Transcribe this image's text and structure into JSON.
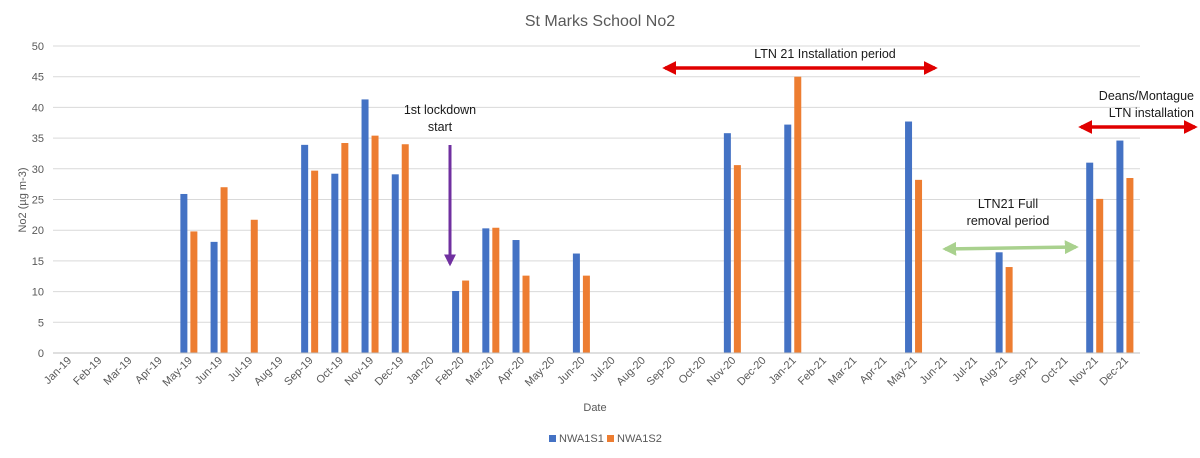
{
  "chart_data": {
    "type": "bar",
    "title": "St Marks School No2",
    "xlabel": "Date",
    "ylabel": "No2 (µg m-3)",
    "ylim": [
      0,
      50
    ],
    "yticks": [
      0,
      5,
      10,
      15,
      20,
      25,
      30,
      35,
      40,
      45,
      50
    ],
    "grid": true,
    "legend_position": "bottom",
    "categories": [
      "Jan-19",
      "Feb-19",
      "Mar-19",
      "Apr-19",
      "May-19",
      "Jun-19",
      "Jul-19",
      "Aug-19",
      "Sep-19",
      "Oct-19",
      "Nov-19",
      "Dec-19",
      "Jan-20",
      "Feb-20",
      "Mar-20",
      "Apr-20",
      "May-20",
      "Jun-20",
      "Jul-20",
      "Aug-20",
      "Sep-20",
      "Oct-20",
      "Nov-20",
      "Dec-20",
      "Jan-21",
      "Feb-21",
      "Mar-21",
      "Apr-21",
      "May-21",
      "Jun-21",
      "Jul-21",
      "Aug-21",
      "Sep-21",
      "Oct-21",
      "Nov-21",
      "Dec-21"
    ],
    "series": [
      {
        "name": "NWA1S1",
        "color": "#4472C4",
        "values": [
          null,
          null,
          null,
          null,
          25.9,
          18.1,
          null,
          null,
          33.9,
          29.2,
          41.3,
          29.1,
          null,
          10.1,
          20.3,
          18.4,
          null,
          16.2,
          null,
          null,
          null,
          null,
          35.8,
          null,
          37.2,
          null,
          null,
          null,
          37.7,
          null,
          null,
          16.4,
          null,
          null,
          31.0,
          34.6
        ]
      },
      {
        "name": "NWA1S2",
        "color": "#ED7D31",
        "values": [
          null,
          null,
          null,
          null,
          19.8,
          27.0,
          21.7,
          null,
          29.7,
          34.2,
          35.4,
          34.0,
          null,
          11.8,
          20.4,
          12.6,
          null,
          12.6,
          null,
          null,
          null,
          null,
          30.6,
          null,
          45.0,
          null,
          null,
          null,
          28.2,
          null,
          null,
          14.0,
          null,
          null,
          25.1,
          28.5
        ]
      }
    ],
    "annotations": [
      {
        "id": "lockdown",
        "lines": [
          "1st lockdown",
          "start"
        ],
        "arrow": "down",
        "color": "#7030A0",
        "at_category": "Feb-20"
      },
      {
        "id": "ltn21-install",
        "lines": [
          "LTN 21 Installation period"
        ],
        "arrow": "double",
        "color": "#E00000",
        "from_category": "Sep-20",
        "to_category": "Jun-21"
      },
      {
        "id": "ltn21-removal",
        "lines": [
          "LTN21 Full",
          "removal period"
        ],
        "arrow": "double",
        "color": "#A9D18E",
        "from_category": "Jul-21",
        "to_category": "Nov-21"
      },
      {
        "id": "deans-install",
        "lines": [
          "Deans/Montague",
          "LTN installation"
        ],
        "arrow": "double",
        "color": "#E00000",
        "from_category": "Nov-21",
        "to_category": "Dec-21"
      }
    ]
  }
}
